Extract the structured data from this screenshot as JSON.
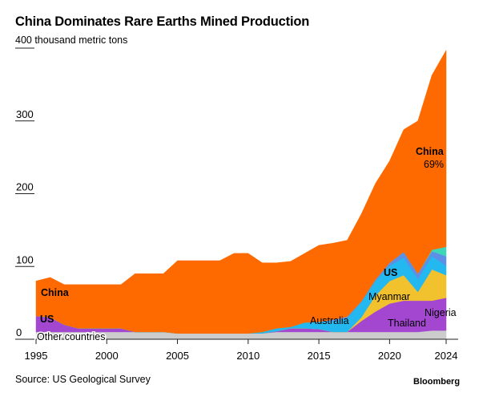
{
  "header": {
    "title": "China Dominates Rare Earths Mined Production",
    "unit": "400 thousand metric tons"
  },
  "footer": {
    "source": "Source: US Geological Survey",
    "brand": "Bloomberg"
  },
  "chart_data": {
    "type": "area",
    "stacked": true,
    "title": "China Dominates Rare Earths Mined Production",
    "ylabel": "thousand metric tons",
    "xlim": [
      1995,
      2024
    ],
    "ylim": [
      0,
      400
    ],
    "x_ticks": [
      1995,
      2000,
      2005,
      2010,
      2015,
      2020,
      2024
    ],
    "y_ticks": [
      0,
      100,
      200,
      300,
      400
    ],
    "y_tick_labels": [
      "0",
      "100",
      "200",
      "300",
      "400"
    ],
    "grid": false,
    "legend": "inline labels",
    "x": [
      1995,
      1996,
      1997,
      1998,
      1999,
      2000,
      2001,
      2002,
      2003,
      2004,
      2005,
      2006,
      2007,
      2008,
      2009,
      2010,
      2011,
      2012,
      2013,
      2014,
      2015,
      2016,
      2017,
      2018,
      2019,
      2020,
      2021,
      2022,
      2023,
      2024
    ],
    "series": [
      {
        "name": "Other countries",
        "color": "#cccccc",
        "values": [
          10,
          10,
          10,
          10,
          10,
          10,
          10,
          10,
          10,
          10,
          8,
          8,
          8,
          8,
          8,
          8,
          8,
          10,
          10,
          10,
          10,
          10,
          10,
          10,
          10,
          10,
          10,
          10,
          12,
          12
        ]
      },
      {
        "name": "US",
        "color": "#a347d1",
        "values": [
          22,
          20,
          10,
          5,
          5,
          5,
          5,
          0,
          0,
          0,
          0,
          0,
          0,
          0,
          0,
          0,
          0,
          1,
          5,
          5,
          4,
          0,
          0,
          15,
          28,
          39,
          43,
          43,
          41,
          45
        ]
      },
      {
        "name": "Myanmar",
        "color": "#f2c12e",
        "values": [
          0,
          0,
          0,
          0,
          0,
          0,
          0,
          0,
          0,
          0,
          0,
          0,
          0,
          0,
          0,
          0,
          0,
          0,
          0,
          0,
          0,
          0,
          0,
          5,
          22,
          31,
          35,
          12,
          43,
          31
        ]
      },
      {
        "name": "Australia",
        "color": "#23b8f0",
        "values": [
          0,
          0,
          0,
          0,
          0,
          0,
          0,
          0,
          0,
          0,
          0,
          0,
          0,
          0,
          0,
          0,
          2,
          4,
          2,
          8,
          10,
          15,
          19,
          21,
          20,
          21,
          24,
          18,
          18,
          13
        ]
      },
      {
        "name": "Thailand",
        "color": "#5c8fe6",
        "values": [
          0,
          0,
          0,
          0,
          0,
          0,
          0,
          0,
          0,
          0,
          0,
          0,
          0,
          0,
          0,
          0,
          0,
          0,
          0,
          0,
          0,
          2,
          2,
          1,
          2,
          4,
          8,
          7,
          7,
          13
        ]
      },
      {
        "name": "Nigeria",
        "color": "#3ed6b9",
        "values": [
          0,
          0,
          0,
          0,
          0,
          0,
          0,
          0,
          0,
          0,
          0,
          0,
          0,
          0,
          0,
          0,
          0,
          0,
          0,
          0,
          0,
          0,
          0,
          0,
          0,
          0,
          0,
          0,
          2,
          13
        ]
      },
      {
        "name": "China",
        "color": "#ff6a00",
        "values": [
          48,
          55,
          55,
          60,
          60,
          60,
          60,
          80,
          80,
          80,
          100,
          100,
          100,
          100,
          110,
          110,
          95,
          90,
          90,
          95,
          105,
          105,
          105,
          120,
          132,
          140,
          168,
          210,
          240,
          270
        ]
      }
    ],
    "annotations": [
      {
        "text": "China",
        "series": "China"
      },
      {
        "text": "69%",
        "series": "China"
      },
      {
        "text": "China",
        "series": "China"
      },
      {
        "text": "US",
        "series": "US"
      },
      {
        "text": "US",
        "series": "US"
      },
      {
        "text": "Other countries",
        "series": "Other countries"
      },
      {
        "text": "Australia",
        "series": "Australia"
      },
      {
        "text": "Myanmar",
        "series": "Myanmar"
      },
      {
        "text": "Thailand",
        "series": "Thailand"
      },
      {
        "text": "Nigeria",
        "series": "Nigeria"
      }
    ]
  }
}
